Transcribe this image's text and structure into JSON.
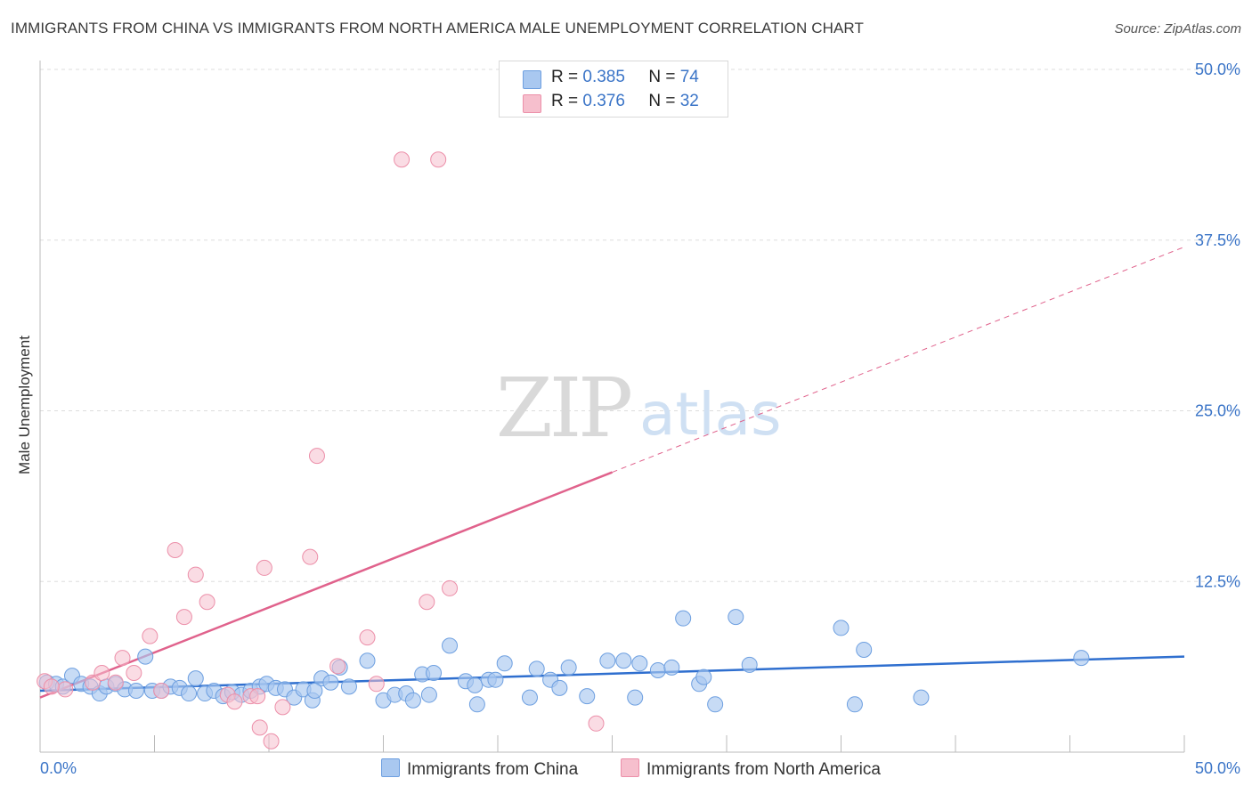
{
  "title": "IMMIGRANTS FROM CHINA VS IMMIGRANTS FROM NORTH AMERICA MALE UNEMPLOYMENT CORRELATION CHART",
  "source": "Source: ZipAtlas.com",
  "watermark": {
    "zip": "ZIP",
    "atlas": "atlas"
  },
  "colors": {
    "china_fill": "#a9c8f0",
    "china_stroke": "#6d9fe0",
    "china_line": "#2f6fcf",
    "na_fill": "#f6bfcd",
    "na_stroke": "#ec8fa9",
    "na_line": "#e0628c",
    "tick_label": "#3a74c7",
    "grid": "#dddddd"
  },
  "legend": {
    "rows": [
      {
        "r_label": "R =",
        "r_value": "0.385",
        "n_label": "N =",
        "n_value": "74"
      },
      {
        "r_label": "R =",
        "r_value": "0.376",
        "n_label": "N =",
        "n_value": "32"
      }
    ]
  },
  "chart_data": {
    "type": "scatter",
    "title": "IMMIGRANTS FROM CHINA VS IMMIGRANTS FROM NORTH AMERICA MALE UNEMPLOYMENT CORRELATION CHART",
    "xlabel": "",
    "ylabel": "Male Unemployment",
    "xlim": [
      0,
      50
    ],
    "ylim": [
      0,
      50
    ],
    "x_tick_labels": [
      "0.0%",
      "50.0%"
    ],
    "y_tick_labels": [
      "12.5%",
      "25.0%",
      "37.5%",
      "50.0%"
    ],
    "y_ticks": [
      12.5,
      25,
      37.5,
      50
    ],
    "grid": true,
    "series": [
      {
        "name": "Immigrants from China",
        "r": 0.385,
        "n": 74,
        "trend": {
          "x0": 0,
          "y0": 4.5,
          "x1": 50,
          "y1": 7.0,
          "dashed_from": null
        },
        "points": [
          [
            0.3,
            5.1
          ],
          [
            0.7,
            5.0
          ],
          [
            1.0,
            4.8
          ],
          [
            1.4,
            5.6
          ],
          [
            1.8,
            5.0
          ],
          [
            2.2,
            4.8
          ],
          [
            2.6,
            4.3
          ],
          [
            2.9,
            4.8
          ],
          [
            3.3,
            5.0
          ],
          [
            3.7,
            4.6
          ],
          [
            4.2,
            4.5
          ],
          [
            4.6,
            7.0
          ],
          [
            4.9,
            4.5
          ],
          [
            5.3,
            4.5
          ],
          [
            5.7,
            4.8
          ],
          [
            6.1,
            4.7
          ],
          [
            6.5,
            4.3
          ],
          [
            6.8,
            5.4
          ],
          [
            7.2,
            4.3
          ],
          [
            7.6,
            4.5
          ],
          [
            8.0,
            4.1
          ],
          [
            8.4,
            4.4
          ],
          [
            8.8,
            4.2
          ],
          [
            9.2,
            4.5
          ],
          [
            9.6,
            4.8
          ],
          [
            9.9,
            5.0
          ],
          [
            10.3,
            4.7
          ],
          [
            10.7,
            4.6
          ],
          [
            11.1,
            4.0
          ],
          [
            11.5,
            4.6
          ],
          [
            11.9,
            3.8
          ],
          [
            12.3,
            5.4
          ],
          [
            12.7,
            5.1
          ],
          [
            13.1,
            6.2
          ],
          [
            13.5,
            4.8
          ],
          [
            14.3,
            6.7
          ],
          [
            15.0,
            3.8
          ],
          [
            15.5,
            4.2
          ],
          [
            16.0,
            4.3
          ],
          [
            16.3,
            3.8
          ],
          [
            16.7,
            5.7
          ],
          [
            17.2,
            5.8
          ],
          [
            17.9,
            7.8
          ],
          [
            18.6,
            5.2
          ],
          [
            19.0,
            4.9
          ],
          [
            19.1,
            3.5
          ],
          [
            19.6,
            5.3
          ],
          [
            19.9,
            5.3
          ],
          [
            20.3,
            6.5
          ],
          [
            21.4,
            4.0
          ],
          [
            21.7,
            6.1
          ],
          [
            22.3,
            5.3
          ],
          [
            22.7,
            4.7
          ],
          [
            23.1,
            6.2
          ],
          [
            23.9,
            4.1
          ],
          [
            24.8,
            6.7
          ],
          [
            25.5,
            6.7
          ],
          [
            26.0,
            4.0
          ],
          [
            27.0,
            6.0
          ],
          [
            27.6,
            6.2
          ],
          [
            28.1,
            9.8
          ],
          [
            28.8,
            5.0
          ],
          [
            29.0,
            5.5
          ],
          [
            29.5,
            3.5
          ],
          [
            30.4,
            9.9
          ],
          [
            35.0,
            9.1
          ],
          [
            35.6,
            3.5
          ],
          [
            36.0,
            7.5
          ],
          [
            38.5,
            4.0
          ],
          [
            45.5,
            6.9
          ],
          [
            26.2,
            6.5
          ],
          [
            31.0,
            6.4
          ],
          [
            17.0,
            4.2
          ],
          [
            12.0,
            4.5
          ]
        ]
      },
      {
        "name": "Immigrants from North America",
        "r": 0.376,
        "n": 32,
        "trend": {
          "x0": 0,
          "y0": 4.0,
          "x1": 50,
          "y1": 37.0,
          "dashed_from": 25.0
        },
        "points": [
          [
            0.2,
            5.2
          ],
          [
            1.1,
            4.6
          ],
          [
            2.3,
            5.1
          ],
          [
            2.7,
            5.8
          ],
          [
            3.3,
            5.1
          ],
          [
            3.6,
            6.9
          ],
          [
            4.1,
            5.8
          ],
          [
            4.8,
            8.5
          ],
          [
            5.3,
            4.5
          ],
          [
            5.9,
            14.8
          ],
          [
            6.3,
            9.9
          ],
          [
            6.8,
            13.0
          ],
          [
            7.3,
            11.0
          ],
          [
            8.2,
            4.2
          ],
          [
            8.5,
            3.7
          ],
          [
            9.2,
            4.1
          ],
          [
            9.5,
            4.1
          ],
          [
            9.6,
            1.8
          ],
          [
            9.8,
            13.5
          ],
          [
            10.1,
            0.8
          ],
          [
            10.6,
            3.3
          ],
          [
            11.8,
            14.3
          ],
          [
            12.1,
            21.7
          ],
          [
            13.0,
            6.3
          ],
          [
            14.3,
            8.4
          ],
          [
            14.7,
            5.0
          ],
          [
            15.8,
            43.4
          ],
          [
            16.9,
            11.0
          ],
          [
            17.4,
            43.4
          ],
          [
            17.9,
            12.0
          ],
          [
            24.3,
            2.1
          ],
          [
            0.5,
            4.8
          ]
        ]
      }
    ]
  },
  "bottom_legend": {
    "china": "Immigrants from China",
    "north_america": "Immigrants from North America"
  }
}
